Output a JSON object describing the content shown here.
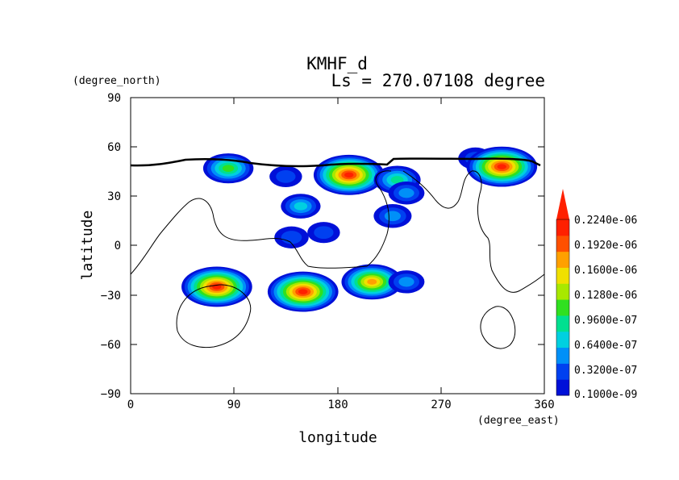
{
  "chart_data": {
    "type": "heatmap",
    "title": "KMHF_d",
    "subtitle": "Ls = 270.07108 degree",
    "xlabel": "longitude",
    "ylabel": "latitude",
    "x_units": "(degree_east)",
    "y_units": "(degree_north)",
    "xlim": [
      0,
      360
    ],
    "ylim": [
      -90,
      90
    ],
    "x_ticks": [
      "0",
      "90",
      "180",
      "270",
      "360"
    ],
    "y_ticks": [
      "90",
      "60",
      "30",
      "0",
      "−30",
      "−60",
      "−90"
    ],
    "colorbar": {
      "labels": [
        "0.1000e-09",
        "0.3200e-07",
        "0.6400e-07",
        "0.9600e-07",
        "0.1280e-06",
        "0.1600e-06",
        "0.1920e-06",
        "0.2240e-06"
      ],
      "colors": [
        "#0010d8",
        "#0040f0",
        "#0090f8",
        "#00d0e0",
        "#00e090",
        "#30e020",
        "#a8e800",
        "#f0e000",
        "#ffa000",
        "#ff5000",
        "#ff2000"
      ],
      "extend": "max"
    },
    "blobs": [
      {
        "lon": 85,
        "lat": 47,
        "value": 0.12
      },
      {
        "lon": 135,
        "lat": 42,
        "value": 0.02
      },
      {
        "lon": 148,
        "lat": 24,
        "value": 0.06
      },
      {
        "lon": 140,
        "lat": 5,
        "value": 0.03
      },
      {
        "lon": 168,
        "lat": 8,
        "value": 0.02
      },
      {
        "lon": 190,
        "lat": 43,
        "value": 0.235
      },
      {
        "lon": 232,
        "lat": 40,
        "value": 0.1
      },
      {
        "lon": 240,
        "lat": 32,
        "value": 0.04
      },
      {
        "lon": 228,
        "lat": 18,
        "value": 0.05
      },
      {
        "lon": 300,
        "lat": 53,
        "value": 0.03
      },
      {
        "lon": 323,
        "lat": 48,
        "value": 0.235
      },
      {
        "lon": 75,
        "lat": -25,
        "value": 0.235
      },
      {
        "lon": 150,
        "lat": -28,
        "value": 0.235
      },
      {
        "lon": 210,
        "lat": -22,
        "value": 0.18
      },
      {
        "lon": 240,
        "lat": -22,
        "value": 0.04
      }
    ]
  }
}
